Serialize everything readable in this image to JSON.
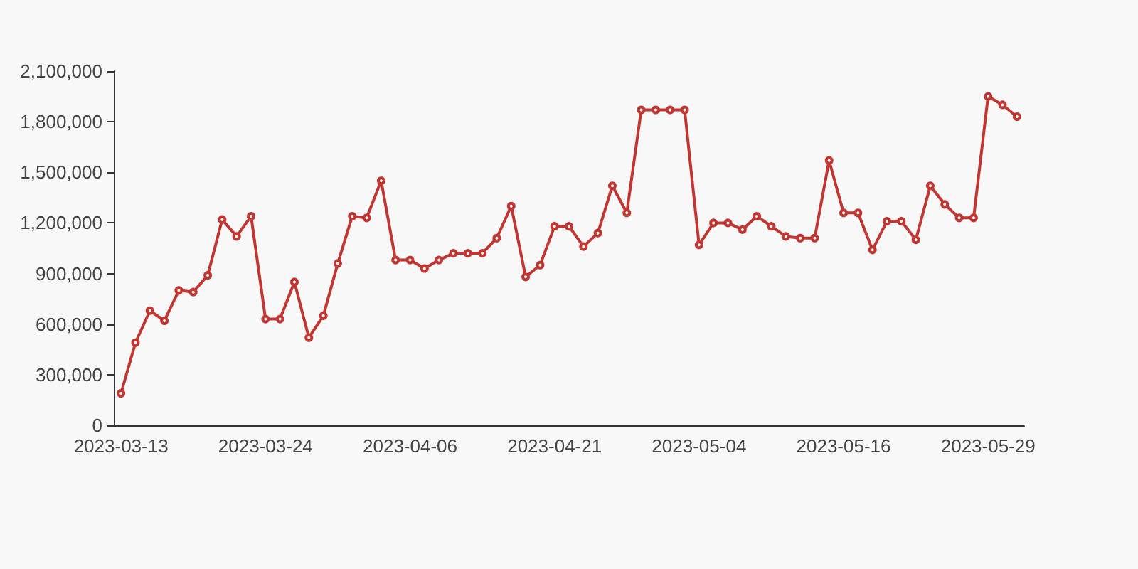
{
  "chart_data": {
    "type": "line",
    "categories": [
      "2023-03-13",
      null,
      null,
      null,
      null,
      null,
      null,
      null,
      null,
      null,
      "2023-03-24",
      null,
      null,
      null,
      null,
      null,
      null,
      null,
      null,
      null,
      "2023-04-06",
      null,
      null,
      null,
      null,
      null,
      null,
      null,
      null,
      null,
      "2023-04-21",
      null,
      null,
      null,
      null,
      null,
      null,
      null,
      null,
      null,
      "2023-05-04",
      null,
      null,
      null,
      null,
      null,
      null,
      null,
      null,
      null,
      "2023-05-16",
      null,
      null,
      null,
      null,
      null,
      null,
      null,
      null,
      null,
      "2023-05-29",
      null,
      null
    ],
    "series": [
      {
        "color": "#c23531",
        "values": [
          190000,
          490000,
          680000,
          620000,
          800000,
          790000,
          890000,
          1220000,
          1120000,
          1240000,
          630000,
          630000,
          850000,
          520000,
          650000,
          960000,
          1240000,
          1230000,
          1450000,
          980000,
          980000,
          930000,
          980000,
          1020000,
          1020000,
          1020000,
          1110000,
          1300000,
          880000,
          950000,
          1180000,
          1180000,
          1060000,
          1140000,
          1420000,
          1260000,
          1870000,
          1870000,
          1870000,
          1870000,
          1070000,
          1200000,
          1200000,
          1160000,
          1240000,
          1180000,
          1120000,
          1110000,
          1110000,
          1570000,
          1260000,
          1260000,
          1040000,
          1210000,
          1210000,
          1100000,
          1420000,
          1310000,
          1230000,
          1230000,
          1950000,
          1900000,
          1830000
        ]
      }
    ],
    "ylim": [
      0,
      2100000
    ],
    "yticks": [
      0,
      {
        "value": 300000,
        "label": "300,000"
      },
      {
        "value": 600000,
        "label": "600,000"
      },
      {
        "value": 900000,
        "label": "900,000"
      },
      {
        "value": 1200000,
        "label": "1,200,000"
      },
      {
        "value": 1500000,
        "label": "1,500,000"
      },
      {
        "value": 1800000,
        "label": "1,800,000"
      },
      {
        "value": 2100000,
        "label": "2,100,000"
      }
    ],
    "grid": false,
    "marker": "circle",
    "line_style": "solid"
  }
}
